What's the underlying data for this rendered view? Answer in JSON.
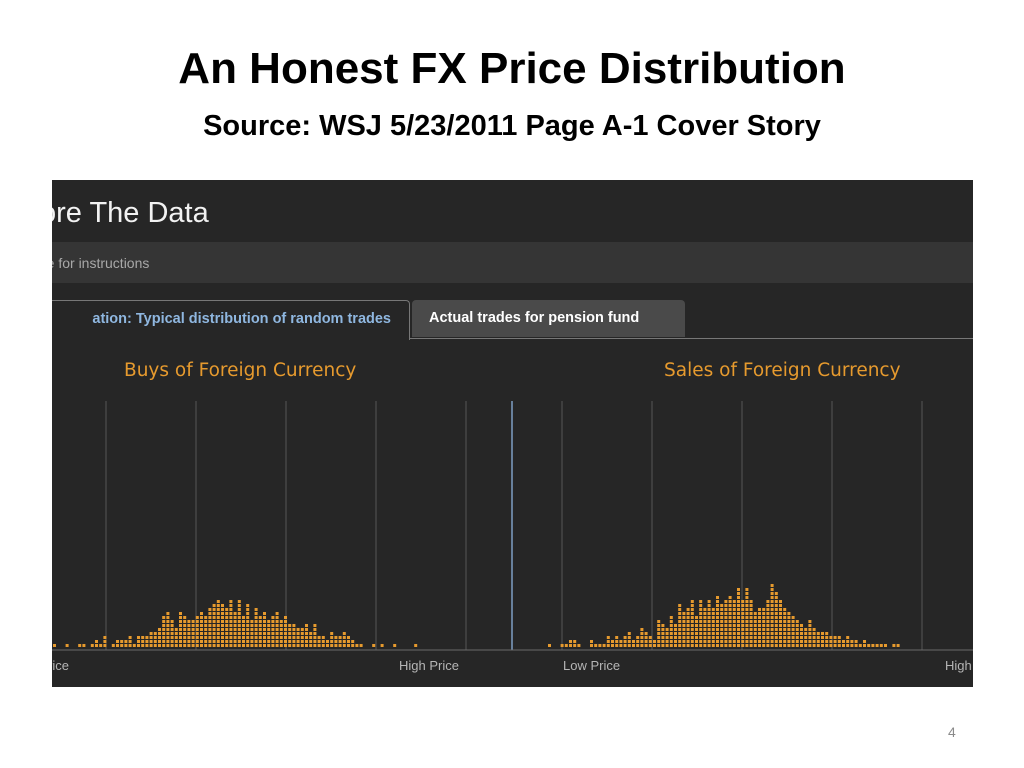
{
  "slide": {
    "title": "An Honest FX Price Distribution",
    "subtitle": "Source: WSJ 5/23/2011 Page A-1 Cover Story",
    "page_number": "4"
  },
  "screenshot": {
    "title": "ore The Data",
    "hint": "re for instructions",
    "tabs": [
      {
        "label": "ation: Typical distribution of random trades",
        "active": true
      },
      {
        "label": "Actual trades for pension fund",
        "active": false
      }
    ]
  },
  "colors": {
    "background": "#262626",
    "bar": "#e69a2e",
    "gridline": "#555555",
    "divider": "#7f9ec4",
    "active_tab_text": "#8fb7e0"
  },
  "chart_data": [
    {
      "type": "bar",
      "title": "Buys of Foreign Currency",
      "xlabel_left": "rice",
      "xlabel_right": "High Price",
      "unit": "trades",
      "values": [
        1,
        0,
        0,
        1,
        0,
        0,
        1,
        1,
        0,
        1,
        2,
        1,
        3,
        0,
        1,
        2,
        2,
        2,
        3,
        1,
        3,
        3,
        3,
        4,
        4,
        5,
        8,
        9,
        7,
        5,
        9,
        8,
        7,
        7,
        8,
        9,
        8,
        10,
        11,
        12,
        11,
        10,
        12,
        9,
        12,
        8,
        11,
        7,
        10,
        8,
        9,
        7,
        8,
        9,
        7,
        8,
        6,
        6,
        5,
        5,
        6,
        4,
        6,
        3,
        3,
        2,
        4,
        3,
        3,
        4,
        3,
        2,
        1,
        1,
        0,
        0,
        1,
        0,
        1,
        0,
        0,
        1,
        0,
        0,
        0,
        0,
        1
      ],
      "bars_hidden_left": true
    },
    {
      "type": "bar",
      "title": "Sales of Foreign Currency",
      "xlabel_left": "Low Price",
      "xlabel_right": "High",
      "unit": "trades",
      "values": [
        1,
        0,
        0,
        1,
        1,
        2,
        2,
        1,
        0,
        0,
        2,
        1,
        1,
        1,
        3,
        2,
        3,
        2,
        3,
        4,
        2,
        3,
        5,
        4,
        3,
        2,
        7,
        6,
        5,
        8,
        6,
        11,
        9,
        10,
        12,
        8,
        12,
        10,
        12,
        10,
        13,
        11,
        12,
        13,
        12,
        15,
        12,
        15,
        12,
        9,
        10,
        10,
        12,
        16,
        14,
        12,
        10,
        9,
        8,
        7,
        6,
        5,
        7,
        5,
        4,
        4,
        4,
        3,
        3,
        3,
        2,
        3,
        2,
        2,
        1,
        2,
        1,
        1,
        1,
        1,
        1,
        0,
        1,
        1
      ]
    }
  ]
}
